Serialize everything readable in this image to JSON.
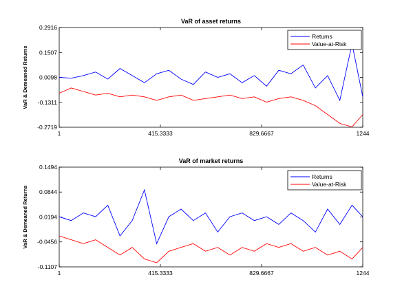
{
  "chart_data": [
    {
      "type": "line",
      "title": "VaR of asset returns",
      "xlabel": "",
      "ylabel": "VaR & Demeaned Returns",
      "xlim": [
        1,
        1244
      ],
      "ylim": [
        -0.2719,
        0.2916
      ],
      "xticks": [
        "1",
        "415.3333",
        "829.6667",
        "1244"
      ],
      "xtick_values": [
        1,
        415.3333,
        829.6667,
        1244
      ],
      "yticks": [
        "0.2916",
        "0.1507",
        "0.0098",
        "-0.1311",
        "-0.2719"
      ],
      "ytick_values": [
        0.2916,
        0.1507,
        0.0098,
        -0.1311,
        -0.2719
      ],
      "legend_position": "top-right",
      "series": [
        {
          "name": "Returns",
          "color": "#0000ff",
          "x": [
            1,
            50,
            100,
            150,
            200,
            250,
            300,
            350,
            400,
            450,
            500,
            550,
            600,
            650,
            700,
            750,
            800,
            850,
            900,
            950,
            1000,
            1050,
            1100,
            1150,
            1200,
            1244
          ],
          "y": [
            0.01,
            0.005,
            0.02,
            0.04,
            0.0,
            0.06,
            0.02,
            -0.02,
            0.03,
            0.05,
            0.0,
            -0.03,
            0.04,
            0.01,
            0.03,
            -0.02,
            0.02,
            -0.04,
            0.05,
            0.03,
            0.08,
            -0.05,
            0.02,
            -0.12,
            0.2,
            -0.1
          ]
        },
        {
          "name": "Value-at-Risk",
          "color": "#ff0000",
          "x": [
            1,
            50,
            100,
            150,
            200,
            250,
            300,
            350,
            400,
            450,
            500,
            550,
            600,
            650,
            700,
            750,
            800,
            850,
            900,
            950,
            1000,
            1050,
            1100,
            1150,
            1200,
            1244
          ],
          "y": [
            -0.08,
            -0.05,
            -0.07,
            -0.09,
            -0.08,
            -0.1,
            -0.09,
            -0.1,
            -0.12,
            -0.1,
            -0.09,
            -0.12,
            -0.11,
            -0.1,
            -0.09,
            -0.11,
            -0.1,
            -0.13,
            -0.11,
            -0.1,
            -0.12,
            -0.15,
            -0.2,
            -0.25,
            -0.27,
            -0.2
          ]
        }
      ]
    },
    {
      "type": "line",
      "title": "VaR of market returns",
      "xlabel": "",
      "ylabel": "VaR & Demeaned Returns",
      "xlim": [
        1,
        1244
      ],
      "ylim": [
        -0.1107,
        0.1494
      ],
      "xticks": [
        "1",
        "415.3333",
        "829.6667",
        "1244"
      ],
      "xtick_values": [
        1,
        415.3333,
        829.6667,
        1244
      ],
      "yticks": [
        "0.1494",
        "0.0844",
        "0.0194",
        "-0.0456",
        "-0.1107"
      ],
      "ytick_values": [
        0.1494,
        0.0844,
        0.0194,
        -0.0456,
        -0.1107
      ],
      "legend_position": "top-right",
      "series": [
        {
          "name": "Returns",
          "color": "#0000ff",
          "x": [
            1,
            50,
            100,
            150,
            200,
            250,
            300,
            350,
            400,
            450,
            500,
            550,
            600,
            650,
            700,
            750,
            800,
            850,
            900,
            950,
            1000,
            1050,
            1100,
            1150,
            1200,
            1244
          ],
          "y": [
            0.02,
            0.01,
            0.03,
            0.02,
            0.05,
            -0.03,
            0.01,
            0.09,
            -0.05,
            0.02,
            0.04,
            0.01,
            0.03,
            -0.02,
            0.02,
            0.03,
            0.01,
            0.02,
            0.0,
            0.03,
            0.01,
            -0.02,
            0.04,
            0.0,
            0.05,
            0.02
          ]
        },
        {
          "name": "Value-at-Risk",
          "color": "#ff0000",
          "x": [
            1,
            50,
            100,
            150,
            200,
            250,
            300,
            350,
            400,
            450,
            500,
            550,
            600,
            650,
            700,
            750,
            800,
            850,
            900,
            950,
            1000,
            1050,
            1100,
            1150,
            1200,
            1244
          ],
          "y": [
            -0.03,
            -0.04,
            -0.05,
            -0.04,
            -0.06,
            -0.08,
            -0.06,
            -0.09,
            -0.1,
            -0.07,
            -0.06,
            -0.05,
            -0.07,
            -0.06,
            -0.08,
            -0.06,
            -0.07,
            -0.05,
            -0.06,
            -0.05,
            -0.07,
            -0.06,
            -0.08,
            -0.07,
            -0.09,
            -0.06
          ]
        }
      ]
    }
  ]
}
